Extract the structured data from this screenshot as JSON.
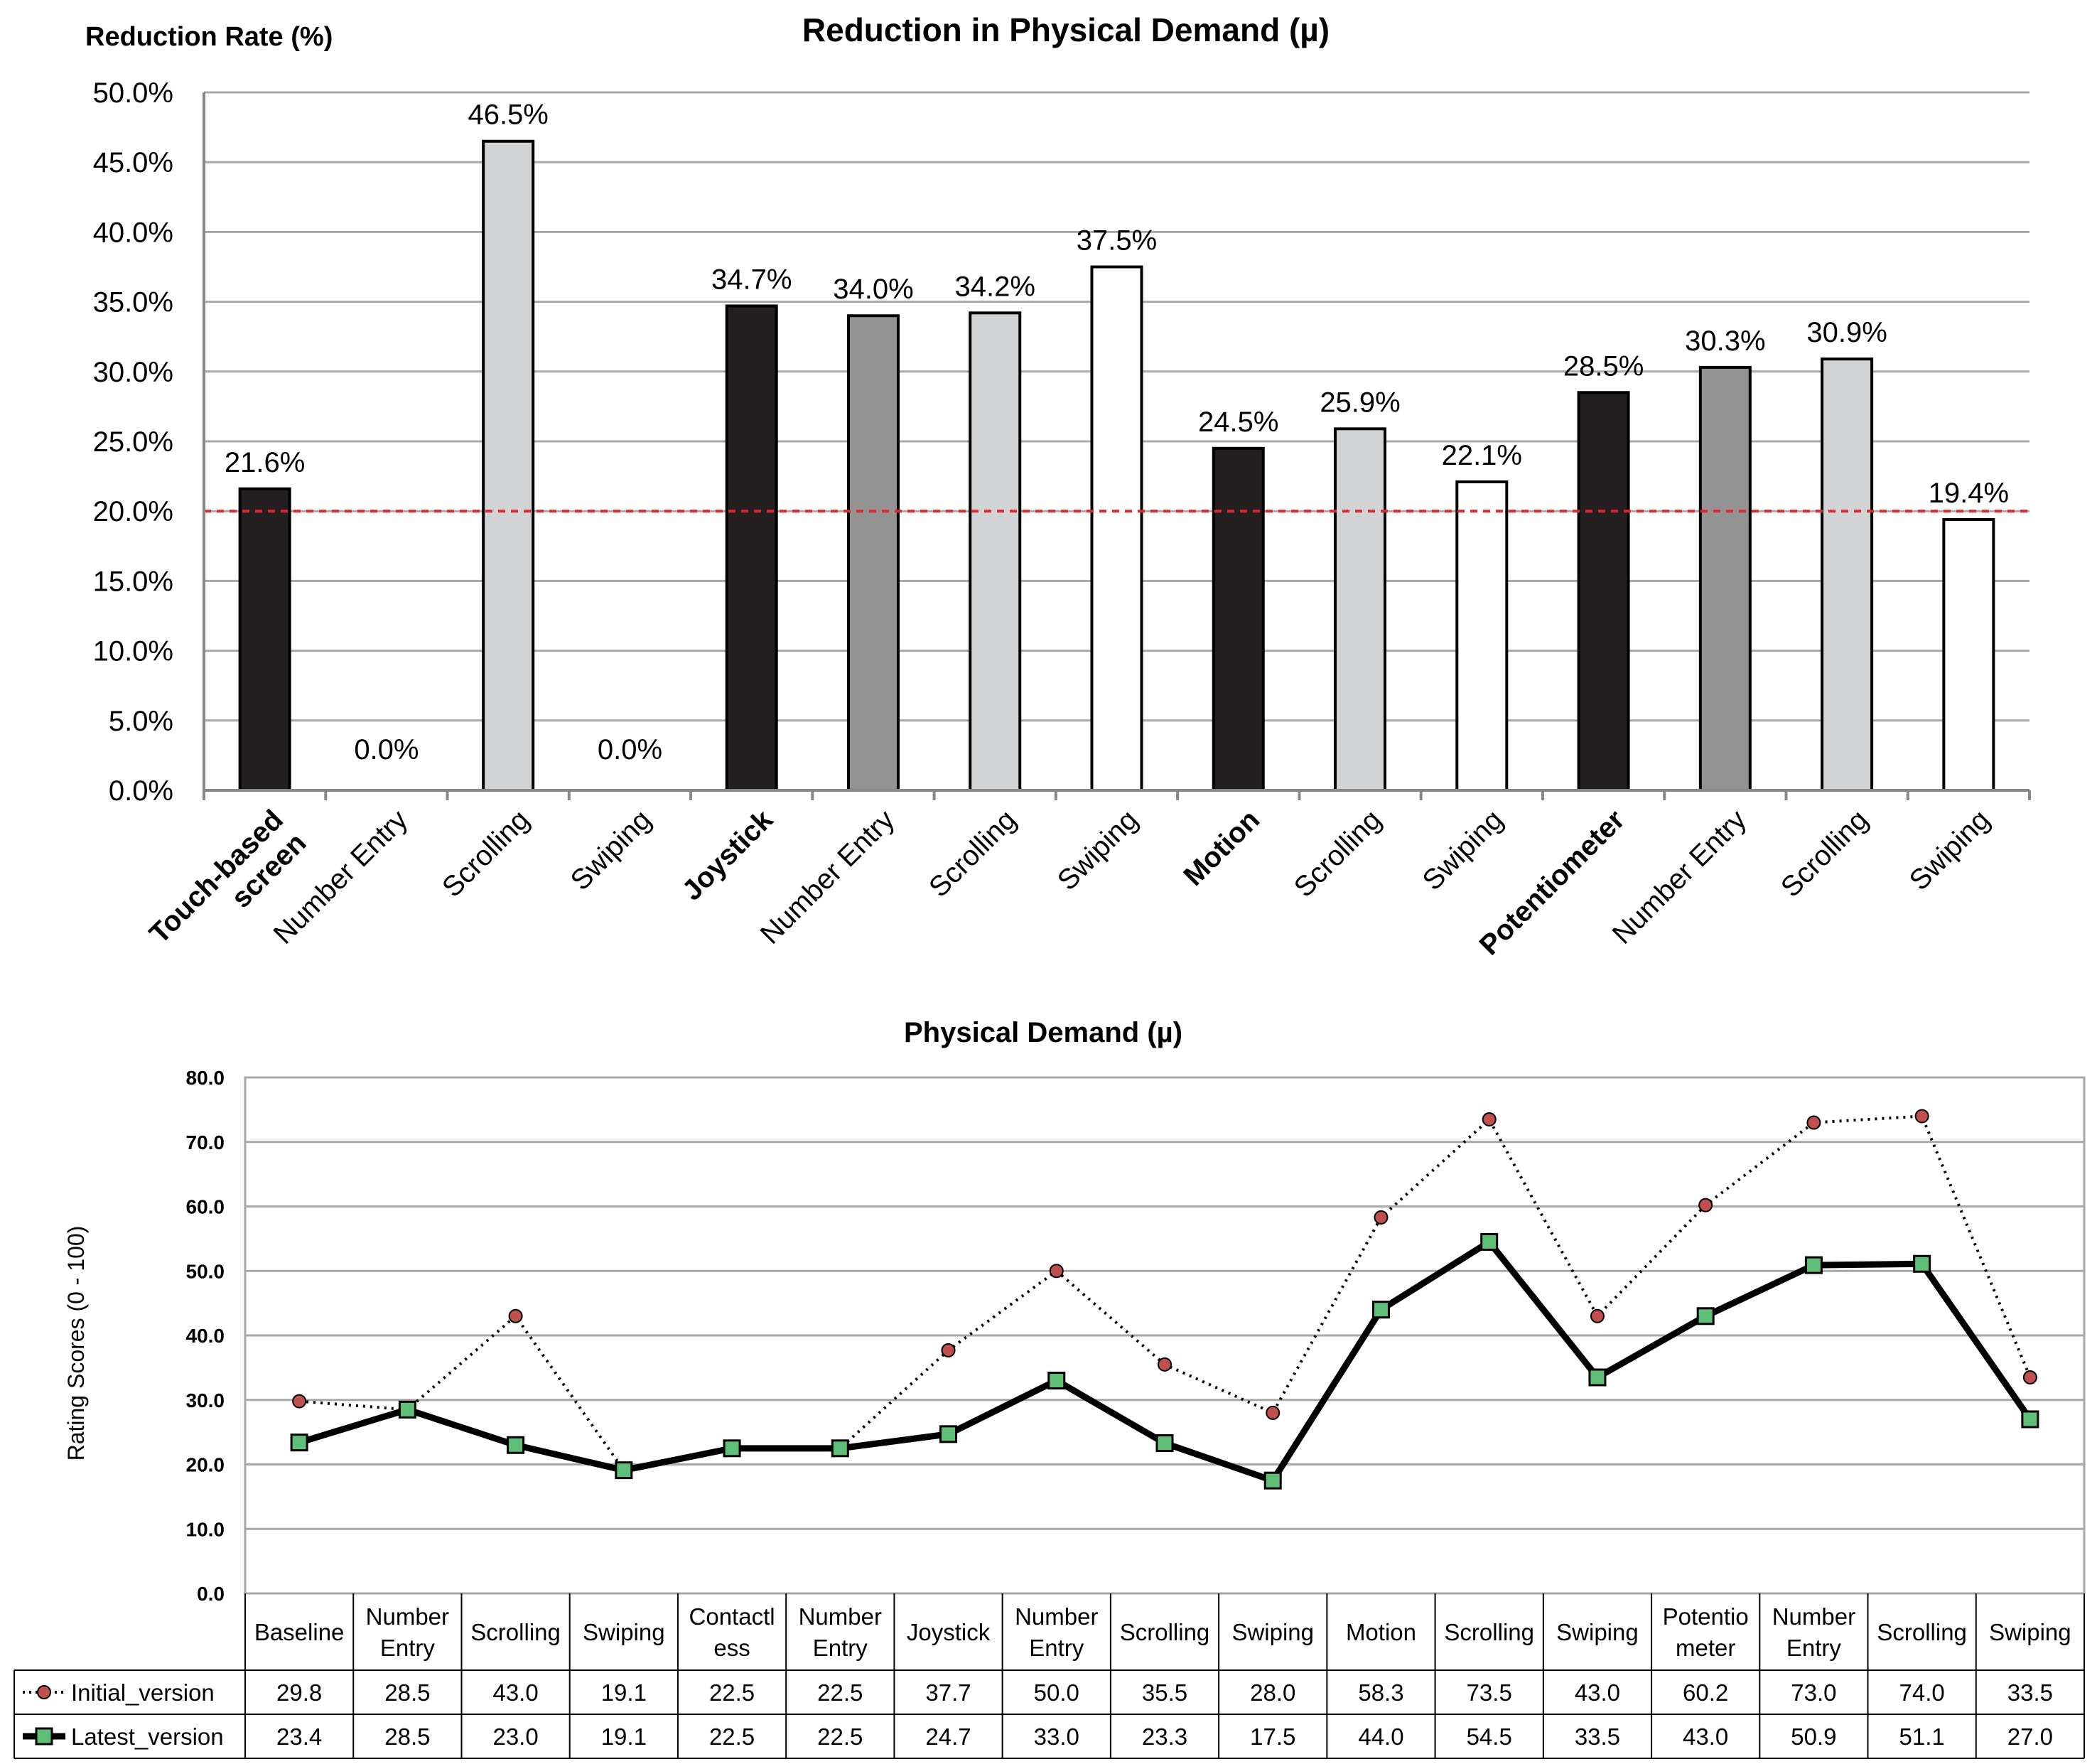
{
  "colors": {
    "black_bar": "#231f20",
    "dark_gray_bar": "#939393",
    "light_gray_bar": "#d2d3d4",
    "white_bar": "#ffffff",
    "threshold_line": "#e0282a",
    "grid": "#a8a8a8",
    "initial_marker": "#c0504d",
    "latest_marker": "#5fbf78"
  },
  "chart_data": [
    {
      "type": "bar",
      "title": "Reduction in Physical Demand (µ)",
      "ylabel": "Reduction Rate (%)",
      "xlabel": "",
      "ylim": [
        0,
        50
      ],
      "ytick_labels": [
        "0.0%",
        "5.0%",
        "10.0%",
        "15.0%",
        "20.0%",
        "25.0%",
        "30.0%",
        "35.0%",
        "40.0%",
        "45.0%",
        "50.0%"
      ],
      "categories": [
        {
          "label": [
            "Touch-based",
            "screen"
          ],
          "bold": true
        },
        {
          "label": [
            "Number Entry"
          ],
          "bold": false
        },
        {
          "label": [
            "Scrolling"
          ],
          "bold": false
        },
        {
          "label": [
            "Swiping"
          ],
          "bold": false
        },
        {
          "label": [
            "Joystick"
          ],
          "bold": true
        },
        {
          "label": [
            "Number Entry"
          ],
          "bold": false
        },
        {
          "label": [
            "Scrolling"
          ],
          "bold": false
        },
        {
          "label": [
            "Swiping"
          ],
          "bold": false
        },
        {
          "label": [
            "Motion"
          ],
          "bold": true
        },
        {
          "label": [
            "Scrolling"
          ],
          "bold": false
        },
        {
          "label": [
            "Swiping"
          ],
          "bold": false
        },
        {
          "label": [
            "Potentiometer"
          ],
          "bold": true
        },
        {
          "label": [
            "Number Entry"
          ],
          "bold": false
        },
        {
          "label": [
            "Scrolling"
          ],
          "bold": false
        },
        {
          "label": [
            "Swiping"
          ],
          "bold": false
        }
      ],
      "values": [
        21.6,
        0.0,
        46.5,
        0.0,
        34.7,
        34.0,
        34.2,
        37.5,
        24.5,
        25.9,
        22.1,
        28.5,
        30.3,
        30.9,
        19.4
      ],
      "value_labels": [
        "21.6%",
        "0.0%",
        "46.5%",
        "0.0%",
        "34.7%",
        "34.0%",
        "34.2%",
        "37.5%",
        "24.5%",
        "25.9%",
        "22.1%",
        "28.5%",
        "30.3%",
        "30.9%",
        "19.4%"
      ],
      "bar_fills": [
        "black",
        "light",
        "light",
        "white",
        "black",
        "dark",
        "light",
        "white",
        "black",
        "light",
        "white",
        "black",
        "dark",
        "light",
        "white"
      ],
      "threshold": 20.0,
      "grid": true
    },
    {
      "type": "line",
      "title": "Physical Demand (µ)",
      "ylabel": "Rating Scores (0 - 100)",
      "ylim": [
        0,
        80
      ],
      "ytick_labels": [
        "0.0",
        "10.0",
        "20.0",
        "30.0",
        "40.0",
        "50.0",
        "60.0",
        "70.0",
        "80.0"
      ],
      "categories": [
        [
          "Baseline"
        ],
        [
          "Number",
          "Entry"
        ],
        [
          "Scrolling"
        ],
        [
          "Swiping"
        ],
        [
          "Contactl",
          "ess"
        ],
        [
          "Number",
          "Entry"
        ],
        [
          "Joystick"
        ],
        [
          "Number",
          "Entry"
        ],
        [
          "Scrolling"
        ],
        [
          "Swiping"
        ],
        [
          "Motion"
        ],
        [
          "Scrolling"
        ],
        [
          "Swiping"
        ],
        [
          "Potentio",
          "meter"
        ],
        [
          "Number",
          "Entry"
        ],
        [
          "Scrolling"
        ],
        [
          "Swiping"
        ]
      ],
      "series": [
        {
          "name": "Initial_version",
          "style": "dotted-circle",
          "values": [
            29.8,
            28.5,
            43.0,
            19.1,
            22.5,
            22.5,
            37.7,
            50.0,
            35.5,
            28.0,
            58.3,
            73.5,
            43.0,
            60.2,
            73.0,
            74.0,
            33.5
          ],
          "value_labels": [
            "29.8",
            "28.5",
            "43.0",
            "19.1",
            "22.5",
            "22.5",
            "37.7",
            "50.0",
            "35.5",
            "28.0",
            "58.3",
            "73.5",
            "43.0",
            "60.2",
            "73.0",
            "74.0",
            "33.5"
          ]
        },
        {
          "name": "Latest_version",
          "style": "solid-square",
          "values": [
            23.4,
            28.5,
            23.0,
            19.1,
            22.5,
            22.5,
            24.7,
            33.0,
            23.3,
            17.5,
            44.0,
            54.5,
            33.5,
            43.0,
            50.9,
            51.1,
            27.0
          ],
          "value_labels": [
            "23.4",
            "28.5",
            "23.0",
            "19.1",
            "22.5",
            "22.5",
            "24.7",
            "33.0",
            "23.3",
            "17.5",
            "44.0",
            "54.5",
            "33.5",
            "43.0",
            "50.9",
            "51.1",
            "27.0"
          ]
        }
      ],
      "grid": true,
      "legend": "data-table-rows"
    }
  ]
}
